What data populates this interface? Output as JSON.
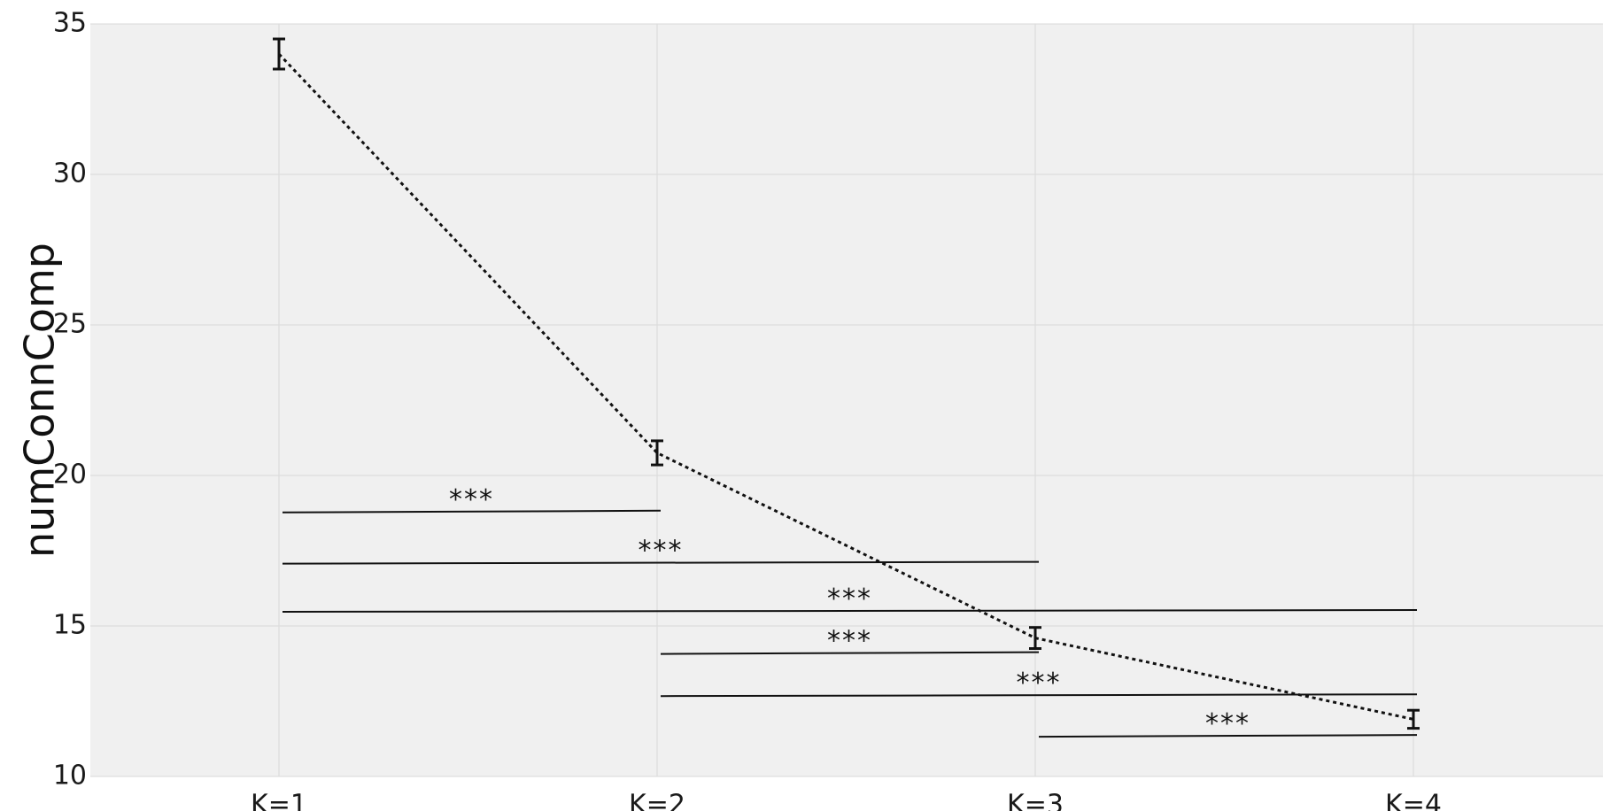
{
  "chart_data": {
    "type": "line",
    "title": "",
    "xlabel": "",
    "ylabel": "numConnComp",
    "categories": [
      "K=1",
      "K=2",
      "K=3",
      "K=4"
    ],
    "series": [
      {
        "values": [
          34.0,
          20.75,
          14.6,
          11.9
        ],
        "errors": [
          0.5,
          0.4,
          0.35,
          0.3
        ]
      }
    ],
    "ylim": [
      10,
      35
    ],
    "yticks": [
      10,
      15,
      20,
      25,
      30,
      35
    ],
    "grid": true,
    "legend": "none",
    "colors": {
      "line": "#111111",
      "plot_bg": "#f0f0f0",
      "grid": "#d9d9d9"
    },
    "significance": [
      {
        "from": 0,
        "to": 1,
        "y": 18.8,
        "label": "***"
      },
      {
        "from": 0,
        "to": 2,
        "y": 17.1,
        "label": "***"
      },
      {
        "from": 0,
        "to": 3,
        "y": 15.5,
        "label": "***"
      },
      {
        "from": 1,
        "to": 2,
        "y": 14.1,
        "label": "***"
      },
      {
        "from": 1,
        "to": 3,
        "y": 12.7,
        "label": "***"
      },
      {
        "from": 2,
        "to": 3,
        "y": 11.35,
        "label": "***"
      }
    ]
  }
}
